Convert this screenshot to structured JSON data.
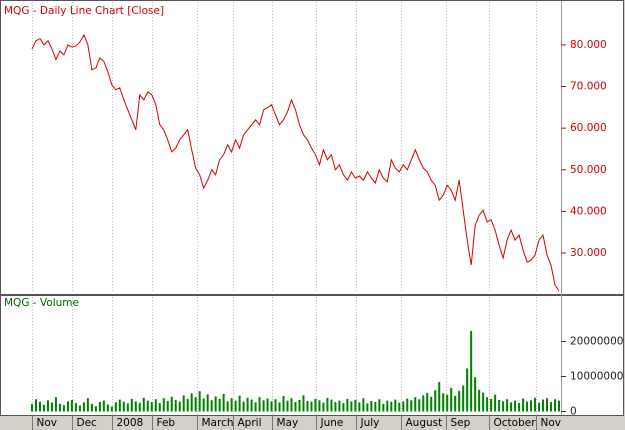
{
  "chart_data": [
    {
      "type": "line",
      "title": "MQG - Daily Line Chart [Close]",
      "color": "#d40000",
      "title_color": "#d40000",
      "grid": true,
      "x": [
        0,
        1,
        2,
        3,
        4,
        5,
        6,
        7,
        8,
        9,
        10,
        11,
        12,
        13,
        14,
        15,
        16,
        17,
        18,
        19,
        20,
        21,
        22,
        23,
        24,
        25,
        26,
        27,
        28,
        29,
        30,
        31,
        32,
        33,
        34,
        35,
        36,
        37,
        38,
        39,
        40,
        41,
        42,
        43,
        44,
        45,
        46,
        47,
        48,
        49,
        50,
        51,
        52,
        53,
        54,
        55,
        56,
        57,
        58,
        59,
        60,
        61,
        62,
        63,
        64,
        65,
        66,
        67,
        68,
        69,
        70,
        71,
        72,
        73,
        74,
        75,
        76,
        77,
        78,
        79,
        80,
        81,
        82,
        83,
        84,
        85,
        86,
        87,
        88,
        89,
        90,
        91,
        92,
        93,
        94,
        95,
        96,
        97,
        98,
        99,
        100,
        101,
        102,
        103,
        104,
        105,
        106,
        107,
        108,
        109,
        110,
        111,
        112,
        113,
        114,
        115,
        116,
        117,
        118,
        119,
        120,
        121,
        122,
        123,
        124,
        125,
        126,
        127,
        128,
        129,
        130,
        131,
        132
      ],
      "values": [
        79,
        81,
        81.5,
        80,
        81,
        79,
        76.5,
        78.5,
        77.6,
        80,
        79.5,
        79.7,
        80.7,
        82.4,
        80,
        74,
        74.5,
        76.9,
        76,
        73.5,
        70.4,
        69.2,
        69.7,
        66.8,
        64.4,
        62,
        59.6,
        68,
        66.8,
        68.7,
        68,
        65.6,
        60.8,
        59.6,
        57.2,
        54.3,
        55.2,
        57.2,
        58.4,
        59.6,
        54.8,
        50.4,
        48.8,
        45.6,
        47.5,
        50,
        48.8,
        52.4,
        53.6,
        56,
        54.3,
        57.2,
        55.2,
        58.4,
        59.6,
        60.8,
        62,
        60.8,
        64.4,
        64.9,
        65.6,
        63.2,
        60.8,
        62,
        63.9,
        66.8,
        64.4,
        60.8,
        58.4,
        57.2,
        55.2,
        53.6,
        51.2,
        54.8,
        52.4,
        53.6,
        50,
        51.2,
        48.8,
        47.5,
        49.5,
        48,
        48.5,
        47.5,
        49.5,
        48,
        46.8,
        50,
        48,
        47.1,
        52.4,
        50.4,
        49.5,
        51.2,
        50,
        52.4,
        54.8,
        52.4,
        50.4,
        49.5,
        47.5,
        46.3,
        42.7,
        43.9,
        46.3,
        45.1,
        42.7,
        47.5,
        40.3,
        33.1,
        27.1,
        36.7,
        39.1,
        40.3,
        37.5,
        38,
        35.5,
        31.9,
        28.8,
        33.1,
        35.5,
        33.1,
        34.3,
        30.7,
        27.8,
        28.3,
        29.5,
        33.1,
        34.3,
        29.5,
        27.1,
        22.3,
        20.9
      ],
      "xlim": [
        -1,
        132.5
      ],
      "ylim": [
        20.4,
        90.3
      ],
      "yticks": [
        {
          "value": 30,
          "label": "30.000"
        },
        {
          "value": 40,
          "label": "40.000"
        },
        {
          "value": 50,
          "label": "50.000"
        },
        {
          "value": 60,
          "label": "60.000"
        },
        {
          "value": 70,
          "label": "70.000"
        },
        {
          "value": 80,
          "label": "80.000"
        }
      ]
    },
    {
      "type": "bar",
      "title": "MQG - Volume",
      "color": "#008000",
      "title_color": "#006400",
      "grid": true,
      "x": [
        0,
        1,
        2,
        3,
        4,
        5,
        6,
        7,
        8,
        9,
        10,
        11,
        12,
        13,
        14,
        15,
        16,
        17,
        18,
        19,
        20,
        21,
        22,
        23,
        24,
        25,
        26,
        27,
        28,
        29,
        30,
        31,
        32,
        33,
        34,
        35,
        36,
        37,
        38,
        39,
        40,
        41,
        42,
        43,
        44,
        45,
        46,
        47,
        48,
        49,
        50,
        51,
        52,
        53,
        54,
        55,
        56,
        57,
        58,
        59,
        60,
        61,
        62,
        63,
        64,
        65,
        66,
        67,
        68,
        69,
        70,
        71,
        72,
        73,
        74,
        75,
        76,
        77,
        78,
        79,
        80,
        81,
        82,
        83,
        84,
        85,
        86,
        87,
        88,
        89,
        90,
        91,
        92,
        93,
        94,
        95,
        96,
        97,
        98,
        99,
        100,
        101,
        102,
        103,
        104,
        105,
        106,
        107,
        108,
        109,
        110,
        111,
        112,
        113,
        114,
        115,
        116,
        117,
        118,
        119,
        120,
        121,
        122,
        123,
        124,
        125,
        126,
        127,
        128,
        129,
        130,
        131,
        132
      ],
      "values": [
        2100000,
        3500000,
        2800000,
        1900000,
        3200000,
        2600000,
        4100000,
        2200000,
        1800000,
        2900000,
        3300000,
        2400000,
        1700000,
        2600000,
        3800000,
        2200000,
        1500000,
        2700000,
        3100000,
        2000000,
        1400000,
        2600000,
        3400000,
        2800000,
        2300000,
        3600000,
        2900000,
        2500000,
        3900000,
        3100000,
        2700000,
        3500000,
        2400000,
        3800000,
        3000000,
        4200000,
        3300000,
        2800000,
        4600000,
        3600000,
        5200000,
        4100000,
        5800000,
        3700000,
        4900000,
        3200000,
        4300000,
        3600000,
        5000000,
        2900000,
        3800000,
        3100000,
        4500000,
        2800000,
        3900000,
        3400000,
        2600000,
        4100000,
        3200000,
        3700000,
        2900000,
        3500000,
        2600000,
        4400000,
        3100000,
        3800000,
        2700000,
        3300000,
        4600000,
        3000000,
        2800000,
        3600000,
        3200000,
        2500000,
        3900000,
        3400000,
        2700000,
        3100000,
        2400000,
        3600000,
        2900000,
        3300000,
        2600000,
        3800000,
        2300000,
        3000000,
        2700000,
        3500000,
        2200000,
        3100000,
        2800000,
        3400000,
        2500000,
        2900000,
        3700000,
        3200000,
        4100000,
        3500000,
        4600000,
        5300000,
        4200000,
        6100000,
        8400000,
        5200000,
        4800000,
        6700000,
        4500000,
        5900000,
        7400000,
        12300000,
        23000000,
        9800000,
        6200000,
        5400000,
        4100000,
        3600000,
        4800000,
        3300000,
        2900000,
        3500000,
        2600000,
        3100000,
        2400000,
        3700000,
        2800000,
        3200000,
        3900000,
        2500000,
        3400000,
        3800000,
        2700000,
        3500000,
        3100000
      ],
      "xlim": [
        -1,
        132.5
      ],
      "ylim": [
        -1000000,
        32700000
      ],
      "yticks": [
        0,
        10000000,
        20000000
      ],
      "xticks": [
        {
          "value": 0,
          "label": "Nov"
        },
        {
          "value": 10,
          "label": "Dec"
        },
        {
          "value": 20,
          "label": "2008"
        },
        {
          "value": 30,
          "label": "Feb"
        },
        {
          "value": 41.25,
          "label": "March"
        },
        {
          "value": 50.25,
          "label": "April"
        },
        {
          "value": 60,
          "label": "May"
        },
        {
          "value": 71.25,
          "label": "June"
        },
        {
          "value": 81.25,
          "label": "July"
        },
        {
          "value": 92.5,
          "label": "August"
        },
        {
          "value": 103.75,
          "label": "Sep"
        },
        {
          "value": 114.5,
          "label": "October"
        },
        {
          "value": 126.25,
          "label": "Nov"
        }
      ]
    }
  ]
}
